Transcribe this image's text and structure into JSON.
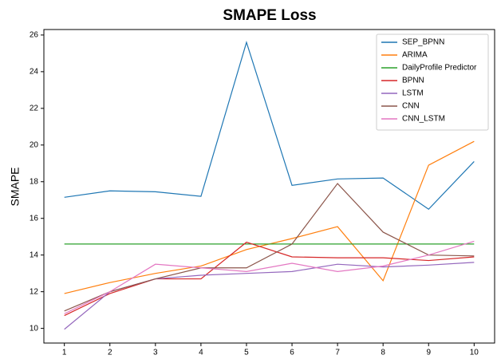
{
  "chart_data": {
    "type": "line",
    "title": "SMAPE Loss",
    "ylabel": "SMAPE",
    "x": [
      1,
      2,
      3,
      4,
      5,
      6,
      7,
      8,
      9,
      10
    ],
    "series": [
      {
        "name": "SEP_BPNN",
        "color": "#1f77b4",
        "values": [
          17.15,
          17.5,
          17.45,
          17.2,
          25.6,
          17.8,
          18.15,
          18.2,
          16.5,
          19.1
        ]
      },
      {
        "name": "ARIMA",
        "color": "#ff7f0e",
        "values": [
          11.9,
          12.5,
          13.0,
          13.4,
          14.3,
          14.9,
          15.55,
          12.6,
          18.9,
          20.2
        ]
      },
      {
        "name": "DailyProfile Predictor",
        "color": "#2ca02c",
        "values": [
          14.6,
          14.6,
          14.6,
          14.6,
          14.6,
          14.6,
          14.6,
          14.6,
          14.6,
          14.6
        ]
      },
      {
        "name": "BPNN",
        "color": "#d62728",
        "values": [
          10.7,
          11.9,
          12.7,
          12.7,
          14.7,
          13.9,
          13.85,
          13.85,
          13.7,
          13.9
        ]
      },
      {
        "name": "LSTM",
        "color": "#9467bd",
        "values": [
          9.95,
          12.0,
          12.7,
          12.9,
          13.0,
          13.1,
          13.5,
          13.35,
          13.45,
          13.6
        ]
      },
      {
        "name": "CNN",
        "color": "#8c564b",
        "values": [
          10.95,
          12.0,
          12.7,
          13.3,
          13.3,
          14.6,
          17.9,
          15.25,
          14.0,
          13.95
        ]
      },
      {
        "name": "CNN_LSTM",
        "color": "#e377c2",
        "values": [
          10.8,
          12.0,
          13.5,
          13.3,
          13.1,
          13.55,
          13.1,
          13.4,
          14.0,
          14.75
        ]
      }
    ],
    "xlim": [
      0.55,
      10.45
    ],
    "xticks": [
      1,
      2,
      3,
      4,
      5,
      6,
      7,
      8,
      9,
      10
    ],
    "ylim": [
      9.2,
      26.3
    ],
    "yticks": [
      10,
      12,
      14,
      16,
      18,
      20,
      22,
      24,
      26
    ],
    "legend": "upper right"
  }
}
